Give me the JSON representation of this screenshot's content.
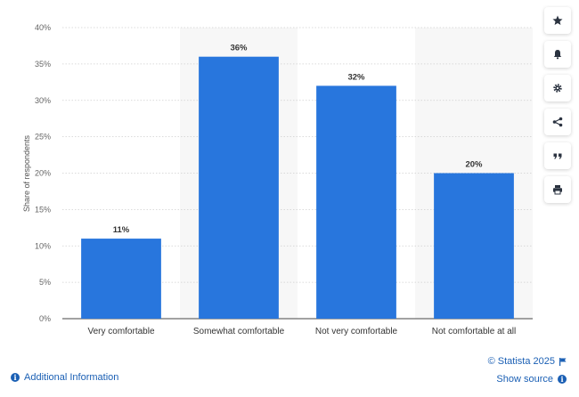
{
  "chart_data": {
    "type": "bar",
    "categories": [
      "Very comfortable",
      "Somewhat comfortable",
      "Not very comfortable",
      "Not comfortable at all"
    ],
    "values": [
      11,
      36,
      32,
      20
    ],
    "data_labels": [
      "11%",
      "36%",
      "32%",
      "20%"
    ],
    "title": "",
    "xlabel": "",
    "ylabel": "Share of respondents",
    "ylim": [
      0,
      40
    ],
    "yticks": [
      0,
      5,
      10,
      15,
      20,
      25,
      30,
      35,
      40
    ],
    "ytick_labels": [
      "0%",
      "5%",
      "10%",
      "15%",
      "20%",
      "25%",
      "30%",
      "35%",
      "40%"
    ],
    "grid": true,
    "bar_color": "#2876dd",
    "alternating_band_color": "#f7f7f7"
  },
  "toolbar": {
    "buttons": [
      {
        "name": "favorite",
        "icon": "star-icon"
      },
      {
        "name": "notification",
        "icon": "bell-icon"
      },
      {
        "name": "settings",
        "icon": "gear-icon"
      },
      {
        "name": "share",
        "icon": "share-icon"
      },
      {
        "name": "cite",
        "icon": "quote-icon"
      },
      {
        "name": "print",
        "icon": "print-icon"
      }
    ]
  },
  "footer": {
    "additional_info": "Additional Information",
    "copyright": "© Statista 2025",
    "show_source": "Show source"
  }
}
